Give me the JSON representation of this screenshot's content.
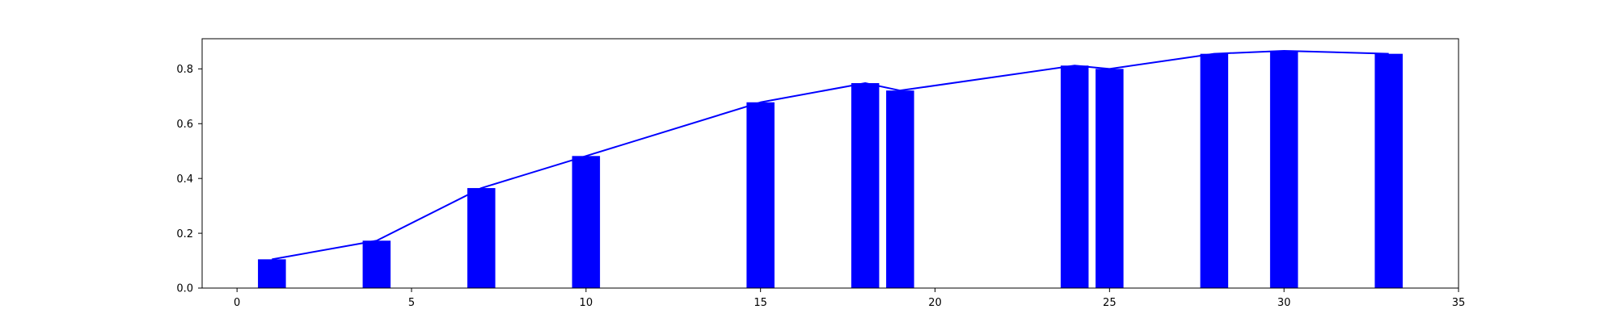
{
  "chart_data": {
    "type": "bar",
    "title": "",
    "xlabel": "",
    "ylabel": "",
    "xlim": [
      -1,
      35
    ],
    "ylim": [
      0,
      0.91
    ],
    "xticks": [
      0,
      5,
      10,
      15,
      20,
      25,
      30,
      35
    ],
    "xtick_labels": [
      "0",
      "5",
      "10",
      "15",
      "20",
      "25",
      "30",
      "35"
    ],
    "yticks": [
      0.0,
      0.2,
      0.4,
      0.6,
      0.8
    ],
    "ytick_labels": [
      "0.0",
      "0.2",
      "0.4",
      "0.6",
      "0.8"
    ],
    "grid": false,
    "legend": "none",
    "bar_width": 0.8,
    "x": [
      1,
      4,
      7,
      10,
      15,
      18,
      19,
      24,
      25,
      28,
      30,
      33
    ],
    "values": [
      0.105,
      0.173,
      0.365,
      0.482,
      0.678,
      0.748,
      0.721,
      0.812,
      0.8,
      0.855,
      0.866,
      0.855
    ],
    "overlay_line": {
      "type": "line",
      "x": [
        1,
        4,
        7,
        10,
        15,
        18,
        19,
        24,
        25,
        28,
        30,
        33
      ],
      "values": [
        0.105,
        0.173,
        0.365,
        0.482,
        0.678,
        0.748,
        0.721,
        0.812,
        0.8,
        0.855,
        0.866,
        0.855
      ]
    },
    "colors": {
      "bar": "#0000ff",
      "line": "#0000ff",
      "axes": "#000000",
      "text": "#000000",
      "background": "#ffffff"
    }
  }
}
